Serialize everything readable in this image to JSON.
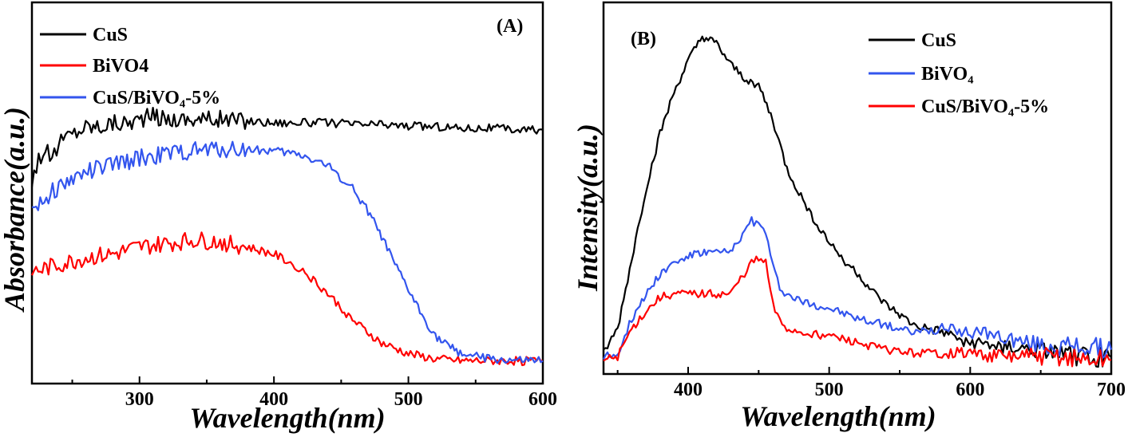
{
  "chart_data": [
    {
      "panel_label": "(A)",
      "type": "line",
      "xlabel": "Wavelength(nm)",
      "ylabel": "Absorbance(a.u.)",
      "xlim": [
        220,
        600
      ],
      "ylim": [
        0,
        1
      ],
      "x_ticks": [
        300,
        400,
        500,
        600
      ],
      "legend_position": "top-left",
      "series": [
        {
          "name": "CuS",
          "color": "#000000",
          "x": [
            220,
            225,
            230,
            235,
            240,
            245,
            250,
            255,
            260,
            270,
            280,
            290,
            300,
            310,
            320,
            330,
            340,
            350,
            360,
            380,
            400,
            420,
            440,
            460,
            480,
            500,
            520,
            540,
            560,
            580,
            600
          ],
          "y": [
            0.54,
            0.6,
            0.62,
            0.6,
            0.64,
            0.66,
            0.67,
            0.68,
            0.69,
            0.69,
            0.7,
            0.7,
            0.71,
            0.72,
            0.71,
            0.71,
            0.71,
            0.71,
            0.71,
            0.705,
            0.7,
            0.7,
            0.7,
            0.695,
            0.695,
            0.69,
            0.69,
            0.685,
            0.685,
            0.68,
            0.68
          ]
        },
        {
          "name": "BiVO4",
          "color": "#ff0000",
          "x": [
            220,
            240,
            260,
            280,
            300,
            320,
            340,
            360,
            380,
            400,
            420,
            440,
            460,
            480,
            500,
            520,
            540,
            560,
            580,
            600
          ],
          "y": [
            0.28,
            0.3,
            0.32,
            0.33,
            0.35,
            0.36,
            0.37,
            0.365,
            0.35,
            0.33,
            0.29,
            0.22,
            0.14,
            0.08,
            0.05,
            0.035,
            0.03,
            0.03,
            0.03,
            0.03
          ]
        },
        {
          "name": "CuS/BiVO₄-5%",
          "color": "#3355ee",
          "x": [
            220,
            240,
            260,
            280,
            300,
            320,
            340,
            360,
            380,
            400,
            420,
            440,
            460,
            470,
            480,
            490,
            500,
            510,
            520,
            530,
            540,
            560,
            580,
            600
          ],
          "y": [
            0.46,
            0.52,
            0.56,
            0.58,
            0.6,
            0.61,
            0.62,
            0.625,
            0.625,
            0.62,
            0.61,
            0.58,
            0.51,
            0.45,
            0.38,
            0.3,
            0.23,
            0.16,
            0.1,
            0.07,
            0.05,
            0.035,
            0.03,
            0.03
          ]
        }
      ]
    },
    {
      "panel_label": "(B)",
      "type": "line",
      "xlabel": "Wavelength(nm)",
      "ylabel": "Intensity(a.u.)",
      "xlim": [
        340,
        700
      ],
      "ylim": [
        0,
        1
      ],
      "x_ticks": [
        400,
        500,
        600,
        700
      ],
      "legend_position": "top-right",
      "series": [
        {
          "name": "CuS",
          "color": "#000000",
          "x": [
            340,
            350,
            360,
            370,
            380,
            390,
            400,
            410,
            420,
            430,
            440,
            450,
            460,
            470,
            480,
            490,
            500,
            510,
            520,
            530,
            540,
            550,
            560,
            580,
            600,
            620,
            640,
            660,
            680,
            700
          ],
          "y": [
            0.03,
            0.1,
            0.3,
            0.5,
            0.66,
            0.78,
            0.87,
            0.94,
            0.92,
            0.86,
            0.82,
            0.8,
            0.7,
            0.56,
            0.48,
            0.41,
            0.35,
            0.3,
            0.26,
            0.21,
            0.17,
            0.14,
            0.11,
            0.09,
            0.06,
            0.05,
            0.04,
            0.03,
            0.02,
            0.02
          ]
        },
        {
          "name": "BiVO₄",
          "color": "#3355ee",
          "x": [
            340,
            350,
            355,
            360,
            370,
            380,
            390,
            400,
            410,
            420,
            430,
            440,
            445,
            450,
            455,
            460,
            465,
            470,
            480,
            500,
            520,
            540,
            560,
            580,
            600,
            620,
            640,
            660,
            680,
            700
          ],
          "y": [
            0.02,
            0.03,
            0.08,
            0.13,
            0.2,
            0.26,
            0.29,
            0.31,
            0.32,
            0.32,
            0.32,
            0.38,
            0.41,
            0.4,
            0.38,
            0.28,
            0.22,
            0.2,
            0.18,
            0.16,
            0.13,
            0.11,
            0.09,
            0.1,
            0.09,
            0.08,
            0.06,
            0.05,
            0.05,
            0.04
          ]
        },
        {
          "name": "CuS/BiVO₄-5%",
          "color": "#ff0000",
          "x": [
            340,
            350,
            355,
            360,
            370,
            380,
            390,
            400,
            410,
            420,
            430,
            440,
            445,
            450,
            455,
            460,
            465,
            470,
            480,
            500,
            520,
            540,
            560,
            580,
            600,
            620,
            640,
            660,
            680,
            700
          ],
          "y": [
            0.01,
            0.02,
            0.06,
            0.1,
            0.15,
            0.19,
            0.2,
            0.2,
            0.2,
            0.2,
            0.2,
            0.26,
            0.29,
            0.3,
            0.29,
            0.17,
            0.12,
            0.1,
            0.09,
            0.08,
            0.06,
            0.04,
            0.03,
            0.03,
            0.03,
            0.02,
            0.02,
            0.02,
            0.01,
            0.01
          ]
        }
      ]
    }
  ]
}
